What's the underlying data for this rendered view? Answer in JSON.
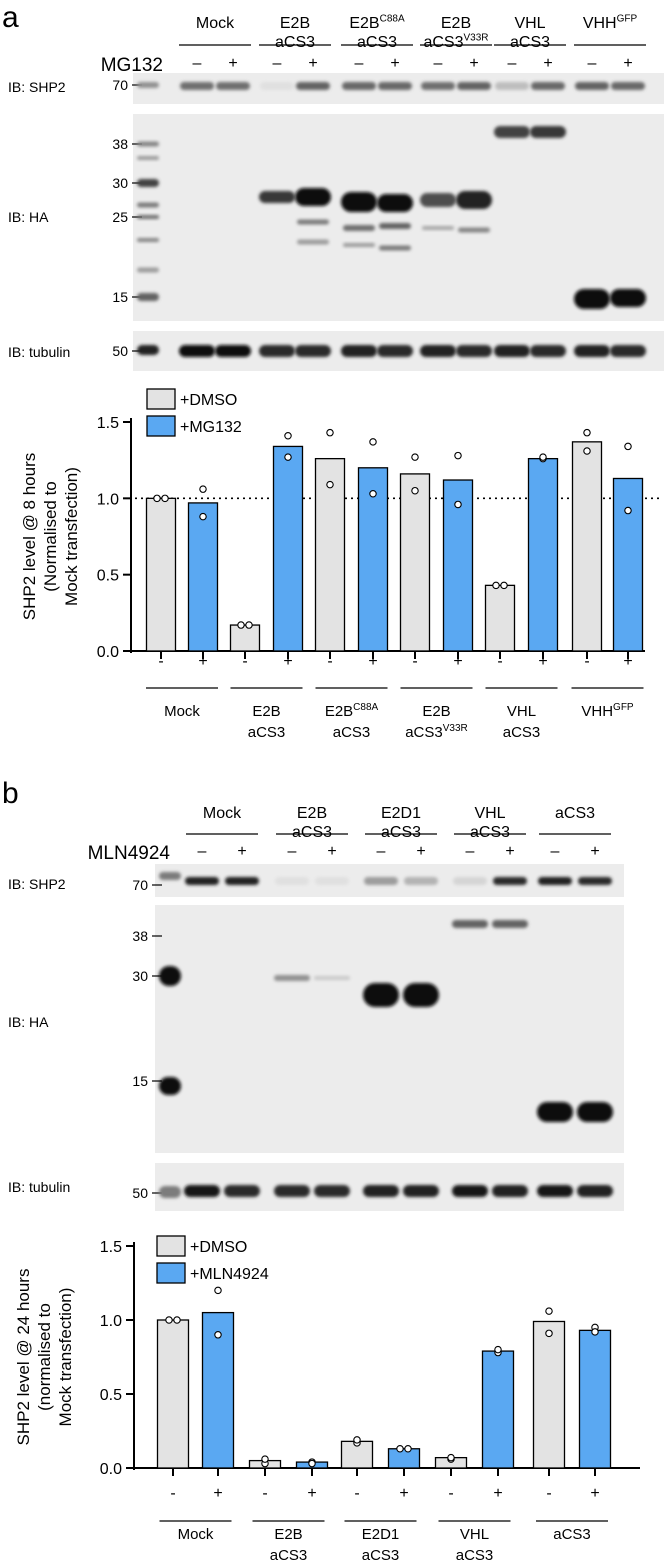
{
  "panel_a": {
    "letter": "a",
    "treatment": "MG132",
    "groups": [
      {
        "l1": "Mock",
        "l2": "",
        "sup": ""
      },
      {
        "l1": "E2B",
        "l2": "aCS3",
        "sup": ""
      },
      {
        "l1": "E2B",
        "l2": "aCS3",
        "sup": "C88A",
        "supOn": 1
      },
      {
        "l1": "E2B",
        "l2": "aCS3",
        "sup": "V33R",
        "supOn": 2
      },
      {
        "l1": "VHL",
        "l2": "aCS3",
        "sup": ""
      },
      {
        "l1": "VHH",
        "l2": "",
        "sup": "GFP",
        "supOn": 1
      }
    ],
    "blots": [
      {
        "label": "IB: SHP2",
        "markers": [
          "70"
        ]
      },
      {
        "label": "IB: HA",
        "markers": [
          "38",
          "30",
          "25",
          "15"
        ]
      },
      {
        "label": "IB: tubulin",
        "markers": [
          "50"
        ]
      }
    ],
    "signs": [
      "–",
      "+"
    ],
    "blot_bands": {
      "shp2": [
        0.55,
        0.55,
        0.05,
        0.6,
        0.58,
        0.58,
        0.55,
        0.6,
        0.2,
        0.58,
        0.6,
        0.58
      ],
      "tubulin": [
        1,
        1,
        0.85,
        0.85,
        0.9,
        0.85,
        0.9,
        0.85,
        0.9,
        0.85,
        0.9,
        0.85
      ],
      "ha_main": [
        0,
        0,
        0.8,
        1,
        1,
        1,
        0.7,
        0.9,
        0.75,
        0.8,
        1,
        1
      ]
    }
  },
  "panel_b": {
    "letter": "b",
    "treatment": "MLN4924",
    "groups": [
      {
        "l1": "Mock",
        "l2": ""
      },
      {
        "l1": "E2B",
        "l2": "aCS3"
      },
      {
        "l1": "E2D1",
        "l2": "aCS3"
      },
      {
        "l1": "VHL",
        "l2": "aCS3"
      },
      {
        "l1": "aCS3",
        "l2": ""
      }
    ],
    "blots": [
      {
        "label": "IB: SHP2",
        "markers": [
          "70"
        ]
      },
      {
        "label": "IB: HA",
        "markers": [
          "38",
          "30",
          "15"
        ]
      },
      {
        "label": "IB: tubulin",
        "markers": [
          "50"
        ]
      }
    ],
    "signs": [
      "–",
      "+"
    ],
    "blot_bands": {
      "shp2": [
        0.9,
        0.9,
        0.05,
        0.05,
        0.35,
        0.25,
        0.1,
        0.85,
        0.9,
        0.85
      ],
      "tubulin": [
        0.95,
        0.85,
        0.85,
        0.85,
        0.9,
        0.9,
        0.95,
        0.9,
        0.95,
        0.9
      ],
      "ha_main": [
        0,
        0,
        0.4,
        0.15,
        1,
        1,
        0.6,
        0.6,
        1,
        1
      ]
    }
  },
  "chart_data": [
    {
      "type": "bar",
      "ylabel_lines": [
        "SHP2 level @ 8 hours",
        "(Normalised to",
        "Mock transfection)"
      ],
      "ylim": [
        0,
        1.5
      ],
      "yticks": [
        "0.0",
        "0.5",
        "1.0",
        "1.5"
      ],
      "reference_line": 1.0,
      "legend_placement": "top-left",
      "x_signs": [
        "-",
        "+"
      ],
      "categories": [
        "Mock",
        "E2B aCS3",
        "E2BC88A aCS3",
        "E2B aCS3V33R",
        "VHL aCS3",
        "VHHGFP"
      ],
      "category_labels": [
        {
          "l1": "Mock",
          "l2": "",
          "sup": ""
        },
        {
          "l1": "E2B",
          "l2": "aCS3",
          "sup": ""
        },
        {
          "l1": "E2B",
          "l2": "aCS3",
          "sup": "C88A",
          "supOn": 1
        },
        {
          "l1": "E2B",
          "l2": "aCS3",
          "sup": "V33R",
          "supOn": 2
        },
        {
          "l1": "VHL",
          "l2": "aCS3",
          "sup": ""
        },
        {
          "l1": "VHH",
          "l2": "",
          "sup": "GFP",
          "supOn": 1
        }
      ],
      "series": [
        {
          "name": "+DMSO",
          "color": "#e3e3e3",
          "values": [
            1.0,
            0.17,
            1.26,
            1.16,
            0.43,
            1.37
          ],
          "points": [
            [
              1.0,
              1.0
            ],
            [
              0.17,
              0.17
            ],
            [
              1.43,
              1.09
            ],
            [
              1.27,
              1.05
            ],
            [
              0.43,
              0.43
            ],
            [
              1.43,
              1.31
            ]
          ]
        },
        {
          "name": "+MG132",
          "color": "#5aa8f2",
          "values": [
            0.97,
            1.34,
            1.2,
            1.12,
            1.26,
            1.13
          ],
          "points": [
            [
              1.06,
              0.88
            ],
            [
              1.41,
              1.27
            ],
            [
              1.37,
              1.03
            ],
            [
              1.28,
              0.96
            ],
            [
              1.26,
              1.27
            ],
            [
              1.34,
              0.92
            ]
          ]
        }
      ]
    },
    {
      "type": "bar",
      "ylabel_lines": [
        "SHP2 level @ 24 hours",
        "(normalised to",
        "Mock transfection)"
      ],
      "ylim": [
        0,
        1.5
      ],
      "yticks": [
        "0.0",
        "0.5",
        "1.0",
        "1.5"
      ],
      "legend_placement": "top-left",
      "x_signs": [
        "-",
        "+"
      ],
      "categories": [
        "Mock",
        "E2B aCS3",
        "E2D1 aCS3",
        "VHL aCS3",
        "aCS3"
      ],
      "category_labels": [
        {
          "l1": "Mock",
          "l2": ""
        },
        {
          "l1": "E2B",
          "l2": "aCS3"
        },
        {
          "l1": "E2D1",
          "l2": "aCS3"
        },
        {
          "l1": "VHL",
          "l2": "aCS3"
        },
        {
          "l1": "aCS3",
          "l2": ""
        }
      ],
      "series": [
        {
          "name": "+DMSO",
          "color": "#e3e3e3",
          "values": [
            1.0,
            0.05,
            0.18,
            0.07,
            0.99
          ],
          "points": [
            [
              1.0,
              1.0
            ],
            [
              0.03,
              0.06
            ],
            [
              0.17,
              0.19
            ],
            [
              0.06,
              0.07
            ],
            [
              1.06,
              0.91
            ]
          ]
        },
        {
          "name": "+MLN4924",
          "color": "#5aa8f2",
          "values": [
            1.05,
            0.04,
            0.13,
            0.79,
            0.93
          ],
          "points": [
            [
              1.2,
              0.9
            ],
            [
              0.04,
              0.03
            ],
            [
              0.13,
              0.13
            ],
            [
              0.78,
              0.8
            ],
            [
              0.95,
              0.92
            ]
          ]
        }
      ]
    }
  ]
}
